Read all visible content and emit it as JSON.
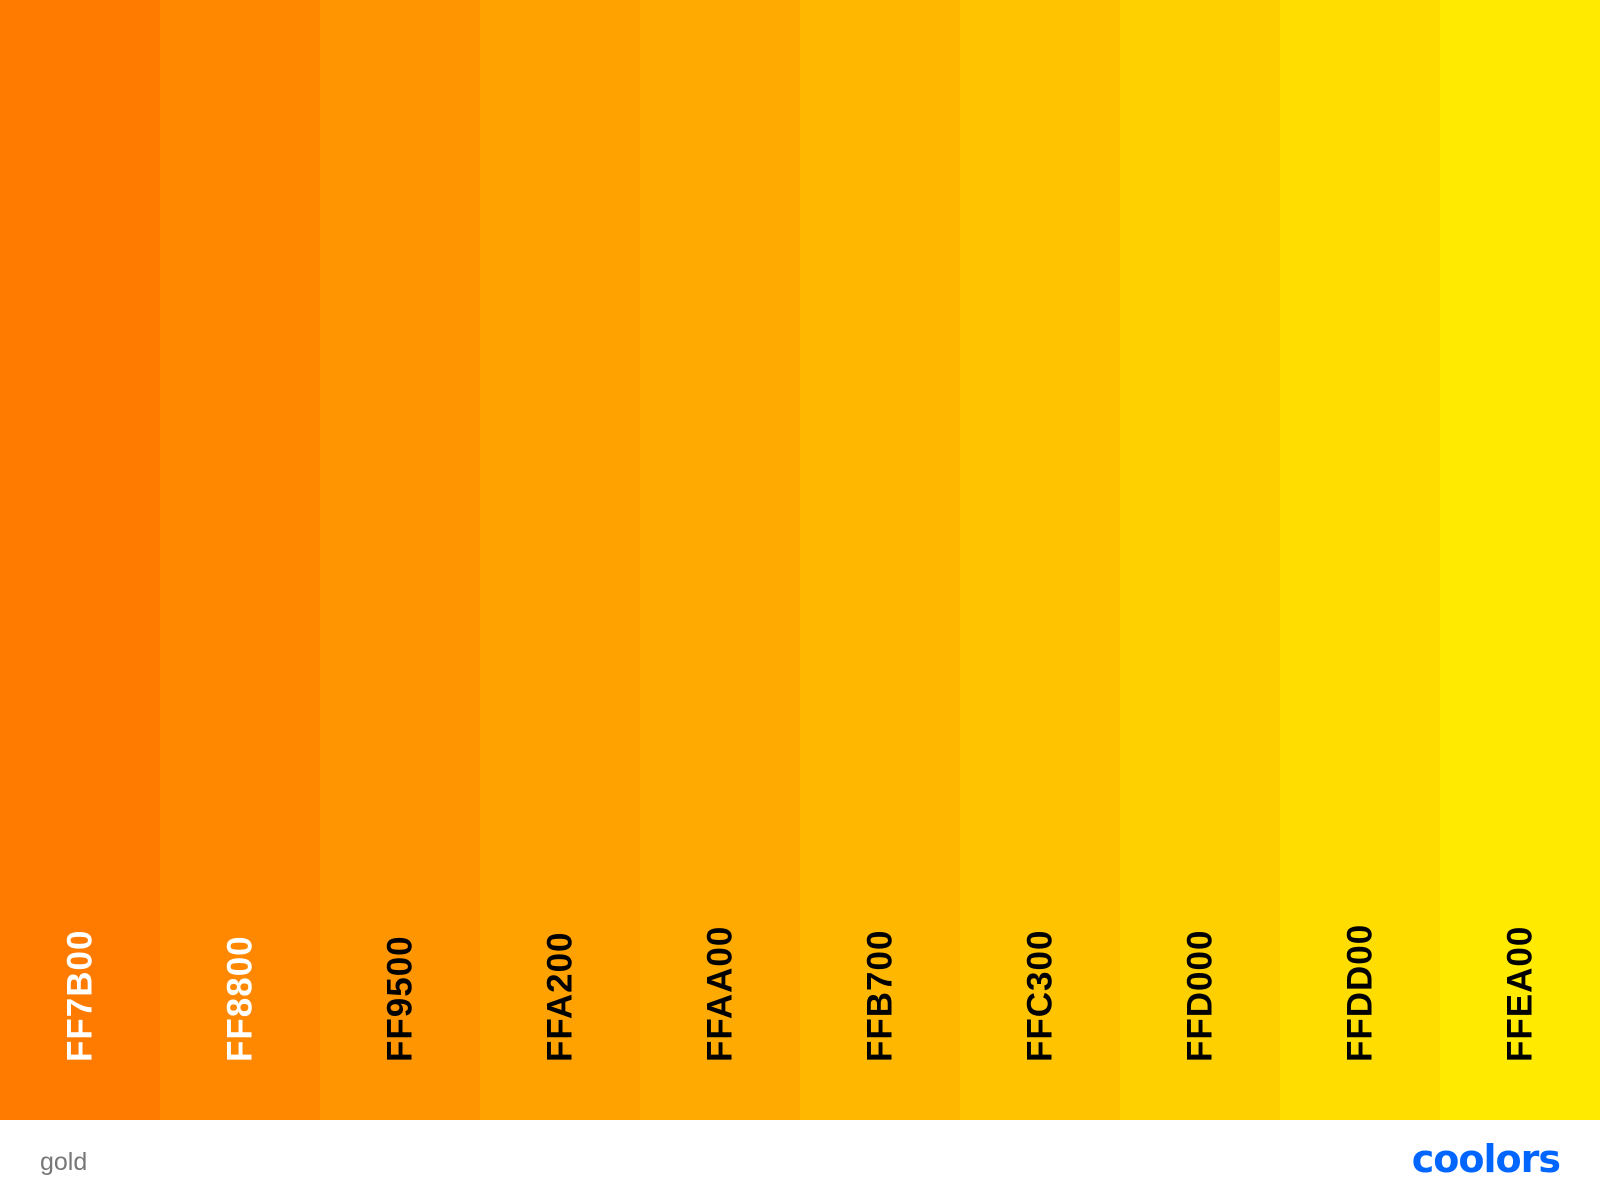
{
  "palette": {
    "name": "gold",
    "colors": [
      {
        "hex": "FF7B00",
        "color": "#FF7B00",
        "text_color": "#ffffff"
      },
      {
        "hex": "FF8800",
        "color": "#FF8800",
        "text_color": "#ffffff"
      },
      {
        "hex": "FF9500",
        "color": "#FF9500",
        "text_color": "#000000"
      },
      {
        "hex": "FFA200",
        "color": "#FFA200",
        "text_color": "#000000"
      },
      {
        "hex": "FFAA00",
        "color": "#FFAA00",
        "text_color": "#000000"
      },
      {
        "hex": "FFB700",
        "color": "#FFB700",
        "text_color": "#000000"
      },
      {
        "hex": "FFC300",
        "color": "#FFC300",
        "text_color": "#000000"
      },
      {
        "hex": "FFD000",
        "color": "#FFD000",
        "text_color": "#000000"
      },
      {
        "hex": "FFDD00",
        "color": "#FFDD00",
        "text_color": "#000000"
      },
      {
        "hex": "FFEA00",
        "color": "#FFEA00",
        "text_color": "#000000"
      }
    ]
  },
  "brand": {
    "logo_text": "coolors",
    "color": "#0066ff"
  }
}
